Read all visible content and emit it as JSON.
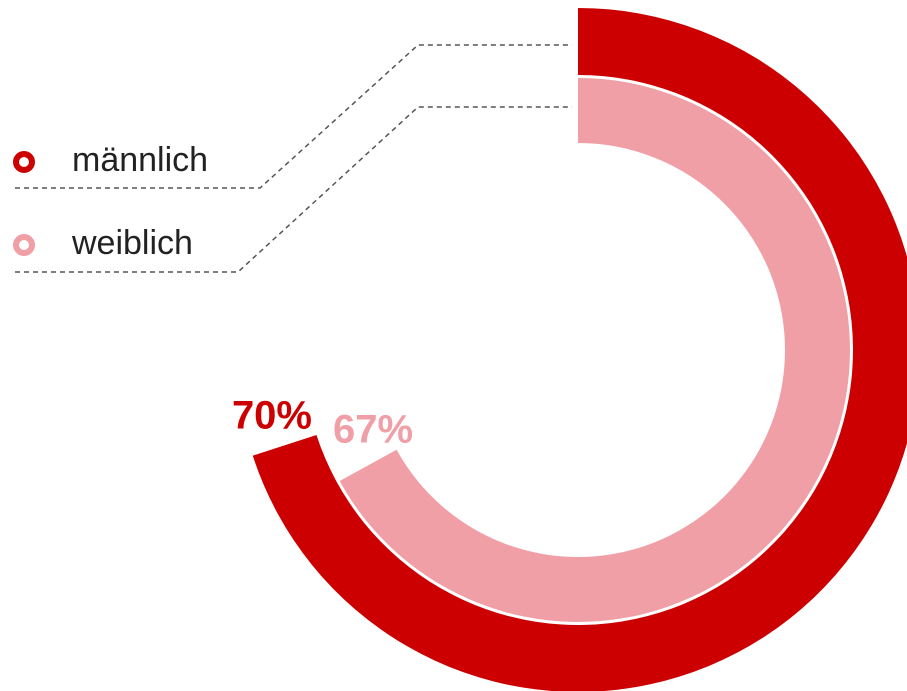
{
  "chart_data": {
    "type": "radial_bar",
    "categories": [
      "männlich",
      "weiblich"
    ],
    "values": [
      70,
      67
    ],
    "value_labels": [
      "70%",
      "67%"
    ],
    "colors": [
      "#cc0000",
      "#f19fa6"
    ],
    "ylim": [
      0,
      100
    ]
  }
}
